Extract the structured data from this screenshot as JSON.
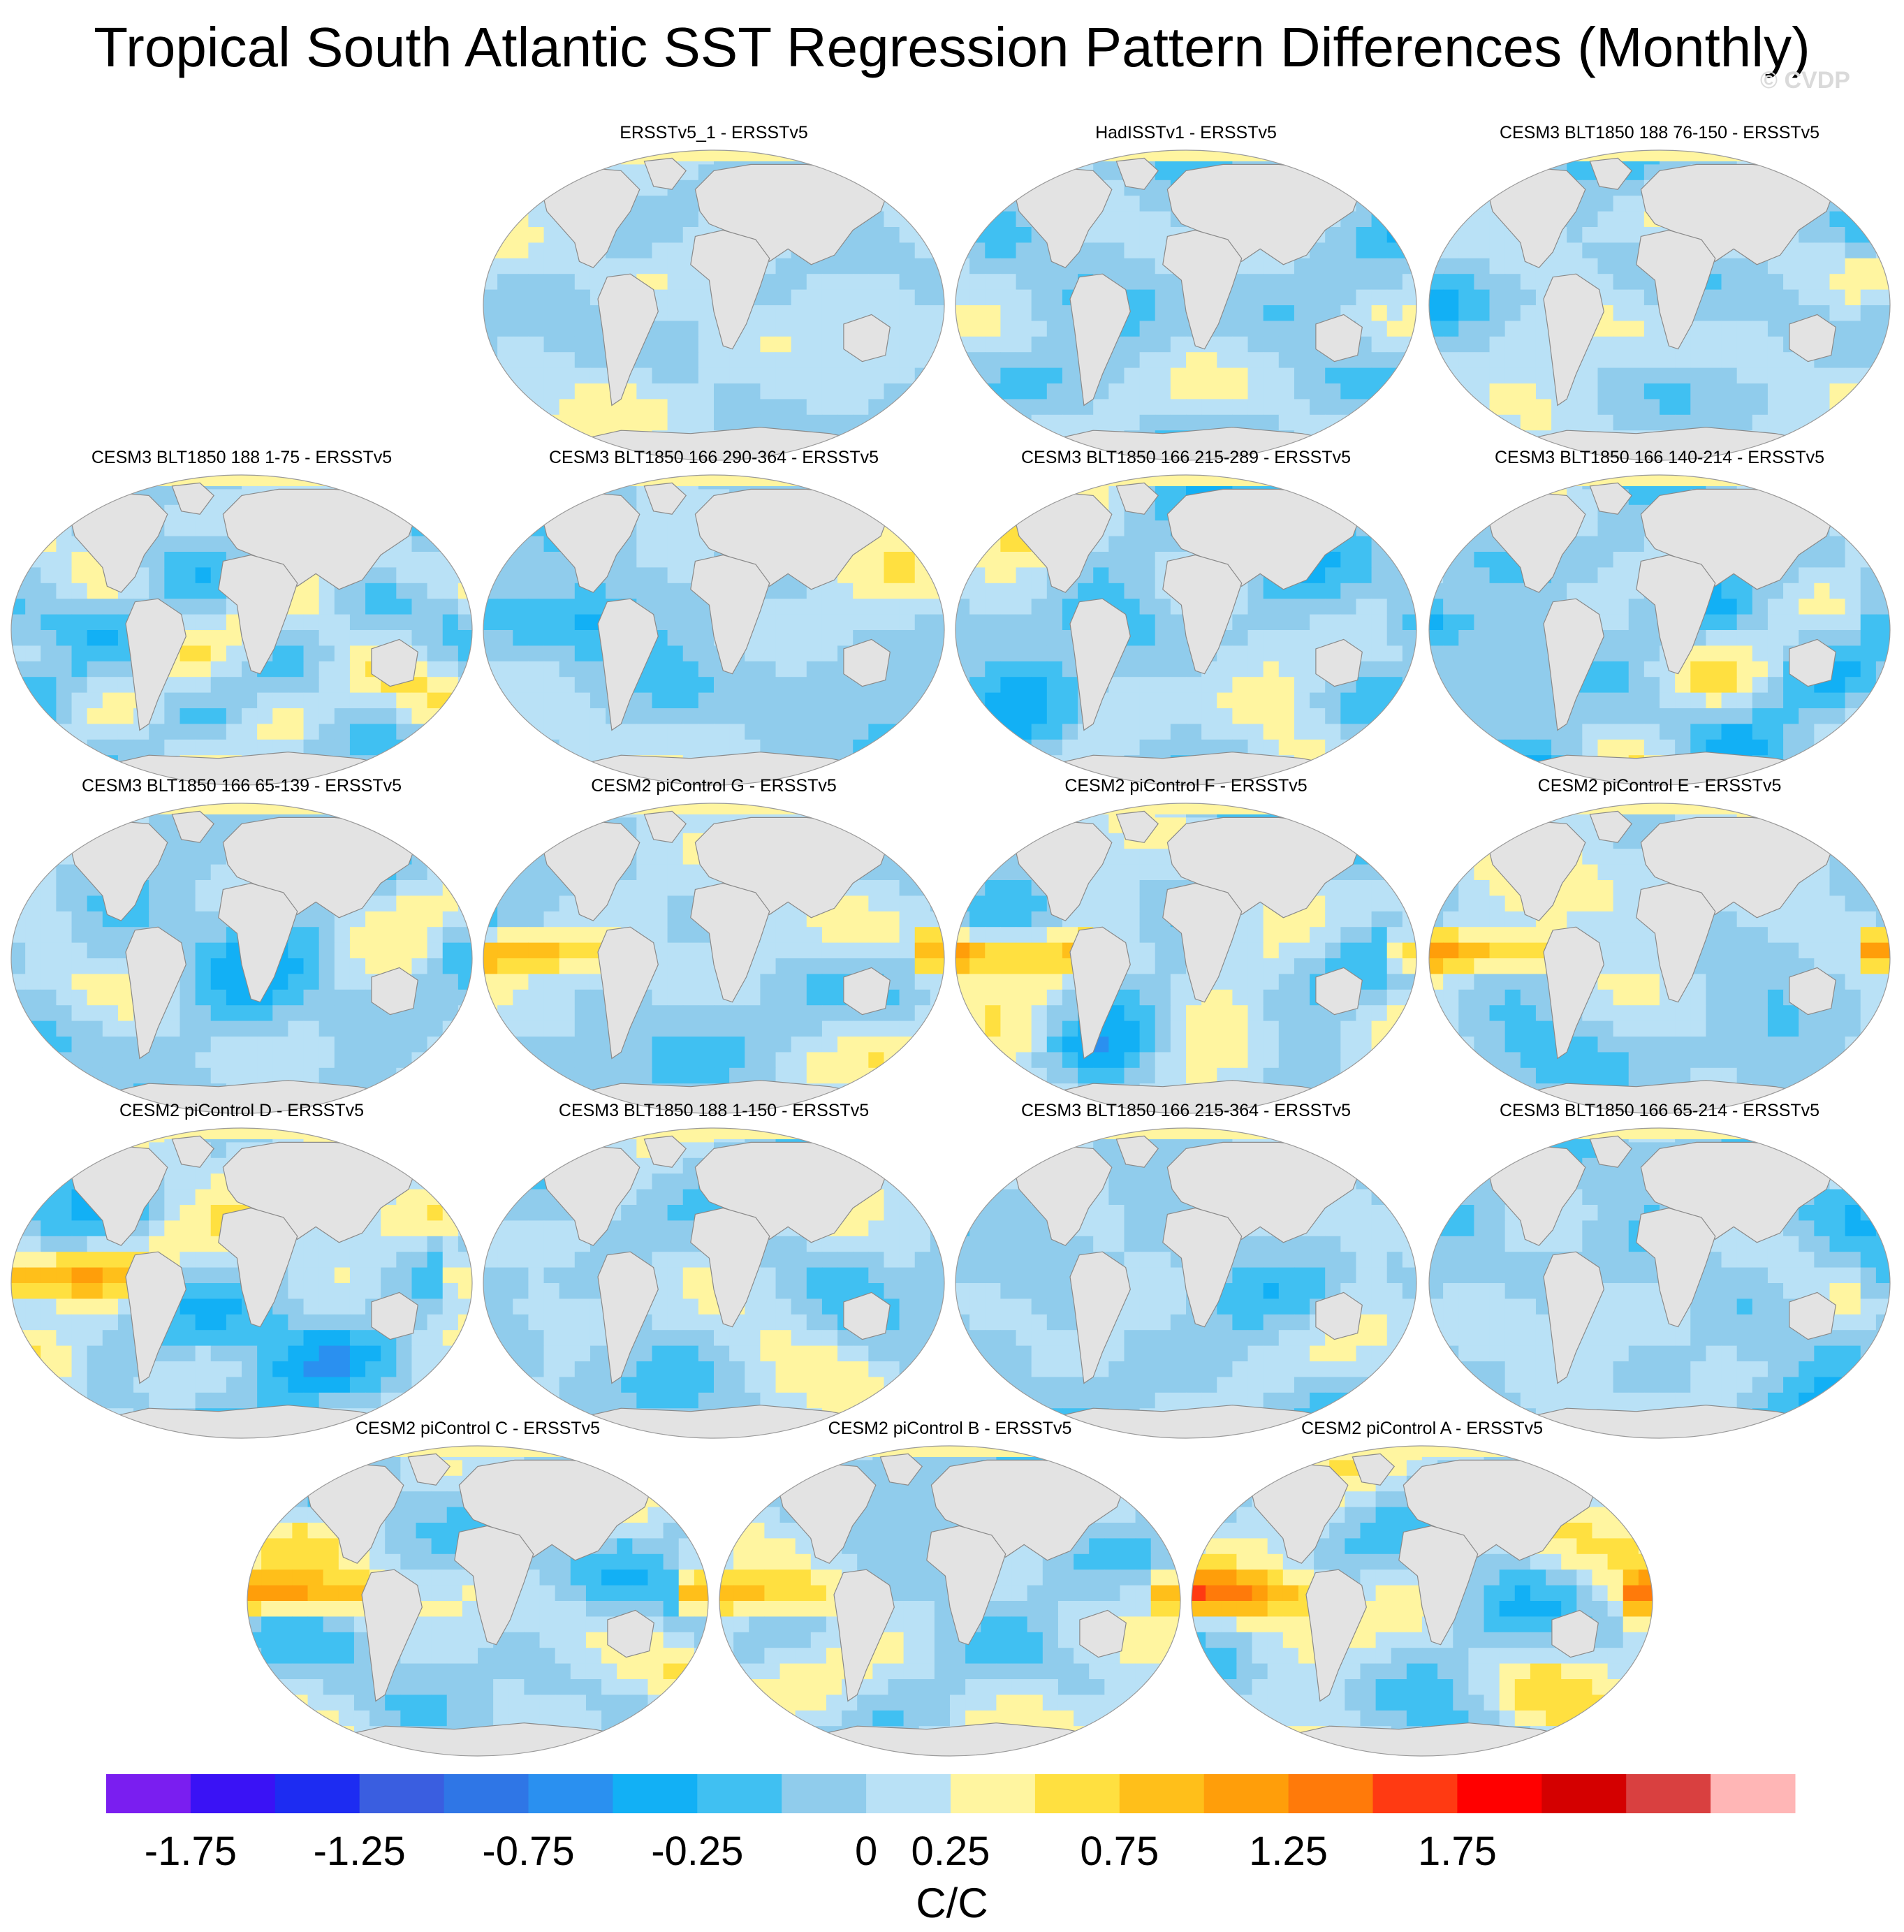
{
  "title": "Tropical South Atlantic SST Regression Pattern Differences (Monthly)",
  "watermark": "© CVDP",
  "chart_data": {
    "type": "heatmap",
    "projection": "robinson",
    "land_color": "#e3e3e3",
    "panels": [
      {
        "title": "ERSSTv5_1 - ERSSTv5",
        "row": 0,
        "col": 1,
        "seed": 11,
        "bias": 0.05,
        "amp": 0.45,
        "nino": 0.0
      },
      {
        "title": "HadISSTv1 - ERSSTv5",
        "row": 0,
        "col": 2,
        "seed": 23,
        "bias": -0.05,
        "amp": 0.45,
        "nino": -0.2
      },
      {
        "title": "CESM3 BLT1850 188 76-150 - ERSSTv5",
        "row": 0,
        "col": 3,
        "seed": 37,
        "bias": 0.05,
        "amp": 0.6,
        "nino": -0.3
      },
      {
        "title": "CESM3 BLT1850 188 1-75 - ERSSTv5",
        "row": 1,
        "col": 0,
        "seed": 41,
        "bias": 0.0,
        "amp": 0.6,
        "nino": -0.35
      },
      {
        "title": "CESM3 BLT1850 166 290-364 - ERSSTv5",
        "row": 1,
        "col": 1,
        "seed": 53,
        "bias": -0.05,
        "amp": 0.55,
        "nino": -0.25
      },
      {
        "title": "CESM3 BLT1850 166 215-289 - ERSSTv5",
        "row": 1,
        "col": 2,
        "seed": 67,
        "bias": -0.05,
        "amp": 0.55,
        "nino": -0.35
      },
      {
        "title": "CESM3 BLT1850 166 140-214 - ERSSTv5",
        "row": 1,
        "col": 3,
        "seed": 71,
        "bias": -0.05,
        "amp": 0.6,
        "nino": -0.4
      },
      {
        "title": "CESM3 BLT1850 166 65-139 - ERSSTv5",
        "row": 2,
        "col": 0,
        "seed": 83,
        "bias": -0.05,
        "amp": 0.55,
        "nino": -0.3
      },
      {
        "title": "CESM2 piControl G - ERSSTv5",
        "row": 2,
        "col": 1,
        "seed": 97,
        "bias": 0.0,
        "amp": 0.65,
        "nino": 1.1
      },
      {
        "title": "CESM2 piControl F - ERSSTv5",
        "row": 2,
        "col": 2,
        "seed": 101,
        "bias": 0.0,
        "amp": 0.65,
        "nino": 1.2
      },
      {
        "title": "CESM2 piControl E - ERSSTv5",
        "row": 2,
        "col": 3,
        "seed": 113,
        "bias": 0.0,
        "amp": 0.65,
        "nino": 1.2
      },
      {
        "title": "CESM2 piControl D - ERSSTv5",
        "row": 3,
        "col": 0,
        "seed": 127,
        "bias": 0.0,
        "amp": 0.65,
        "nino": 1.0
      },
      {
        "title": "CESM3 BLT1850 188 1-150 - ERSSTv5",
        "row": 3,
        "col": 1,
        "seed": 131,
        "bias": 0.0,
        "amp": 0.55,
        "nino": -0.3
      },
      {
        "title": "CESM3 BLT1850 166 215-364 - ERSSTv5",
        "row": 3,
        "col": 2,
        "seed": 149,
        "bias": -0.05,
        "amp": 0.5,
        "nino": -0.3
      },
      {
        "title": "CESM3 BLT1850 166 65-214 - ERSSTv5",
        "row": 3,
        "col": 3,
        "seed": 157,
        "bias": -0.05,
        "amp": 0.55,
        "nino": -0.35
      },
      {
        "title": "CESM2 piControl C - ERSSTv5",
        "row": 4,
        "col": 0,
        "seed": 163,
        "bias": 0.0,
        "amp": 0.7,
        "nino": 1.4
      },
      {
        "title": "CESM2 piControl B - ERSSTv5",
        "row": 4,
        "col": 1,
        "seed": 179,
        "bias": 0.05,
        "amp": 0.6,
        "nino": 0.9
      },
      {
        "title": "CESM2 piControl A - ERSSTv5",
        "row": 4,
        "col": 2,
        "seed": 181,
        "bias": 0.05,
        "amp": 0.65,
        "nino": 1.1
      }
    ],
    "colorbar": {
      "colors": [
        "#7a1ef0",
        "#3a12f5",
        "#1d2cf2",
        "#3a5ee0",
        "#2f76e6",
        "#2a90f0",
        "#12b0f5",
        "#40c0f2",
        "#90ccec",
        "#b9e1f6",
        "#fff5a0",
        "#ffe040",
        "#ffbf1a",
        "#ff9e0a",
        "#ff7a0a",
        "#ff3a12",
        "#ff0000",
        "#d40000",
        "#d94040",
        "#ffb6b6"
      ],
      "levels": [
        -2.0,
        -1.75,
        -1.5,
        -1.25,
        -1.0,
        -0.75,
        -0.5,
        -0.25,
        0,
        0.25,
        0.5,
        0.75,
        1.0,
        1.25,
        1.5,
        1.75,
        2.0
      ],
      "tick_labels": [
        "-1.75",
        "-1.25",
        "-0.75",
        "-0.25",
        "0",
        "0.25",
        "0.75",
        "1.25",
        "1.75"
      ],
      "units": "C/C"
    }
  }
}
